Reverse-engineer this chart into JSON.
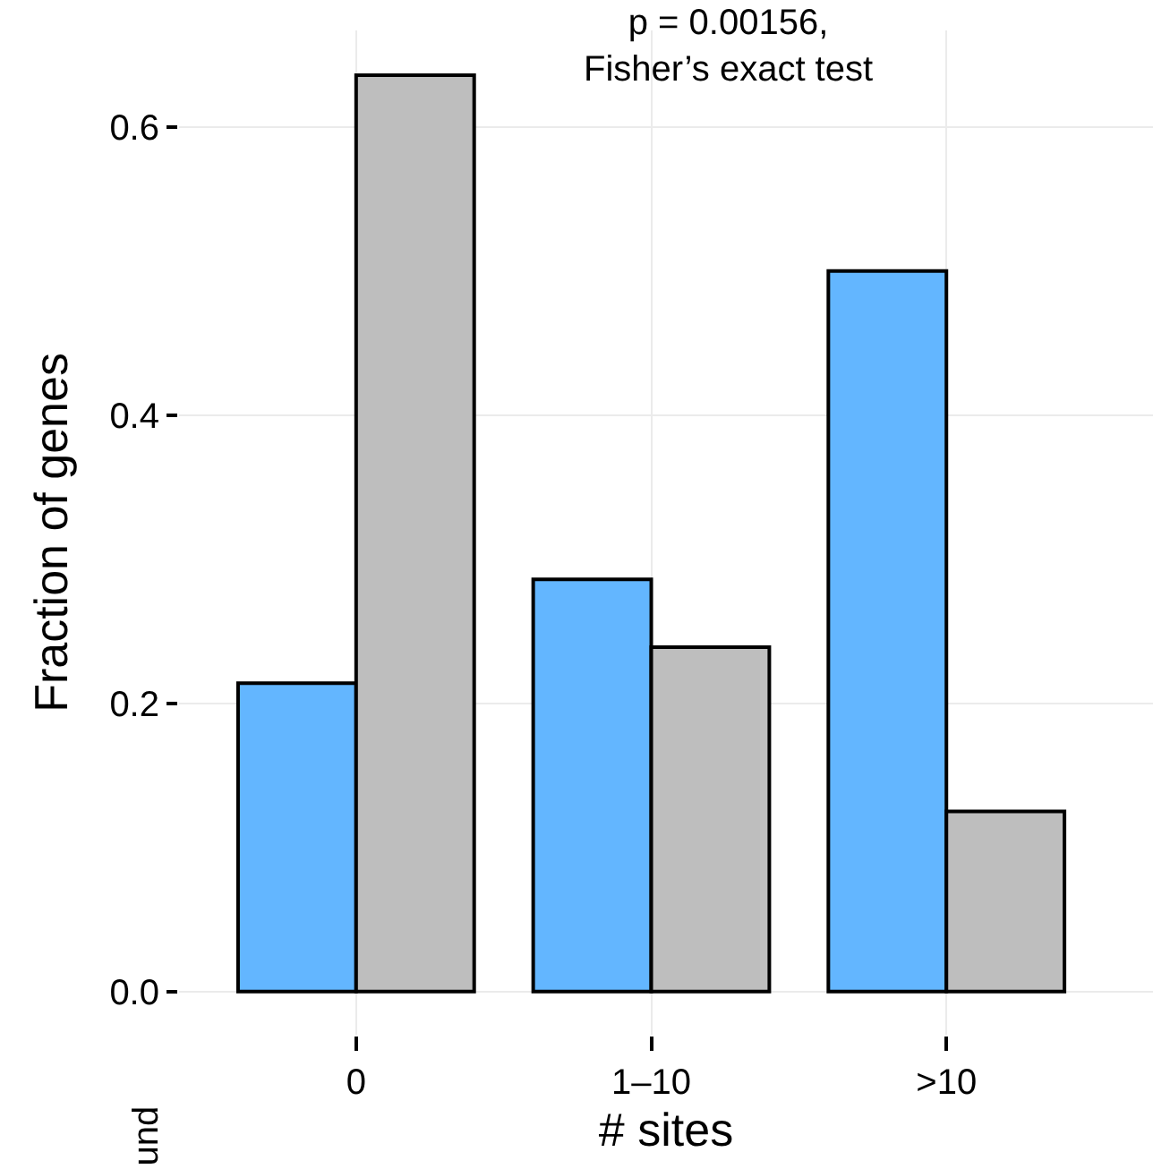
{
  "chart_data": {
    "type": "bar",
    "xlabel": "# sites",
    "ylabel": "Fraction of genes",
    "categories": [
      "0",
      "1–10",
      ">10"
    ],
    "series": [
      {
        "color": "#63b6ff",
        "values": [
          0.214,
          0.286,
          0.5
        ]
      },
      {
        "color": "#bebebe",
        "values": [
          0.636,
          0.239,
          0.125
        ]
      }
    ],
    "ylim": [
      -0.03,
      0.667
    ],
    "yticks": [
      {
        "value": 0,
        "label": "0.0"
      },
      0.2,
      0.4,
      0.6
    ],
    "grid": true,
    "annotations": [
      "p = 0.00156,\nFisher’s exact test",
      "und"
    ]
  }
}
